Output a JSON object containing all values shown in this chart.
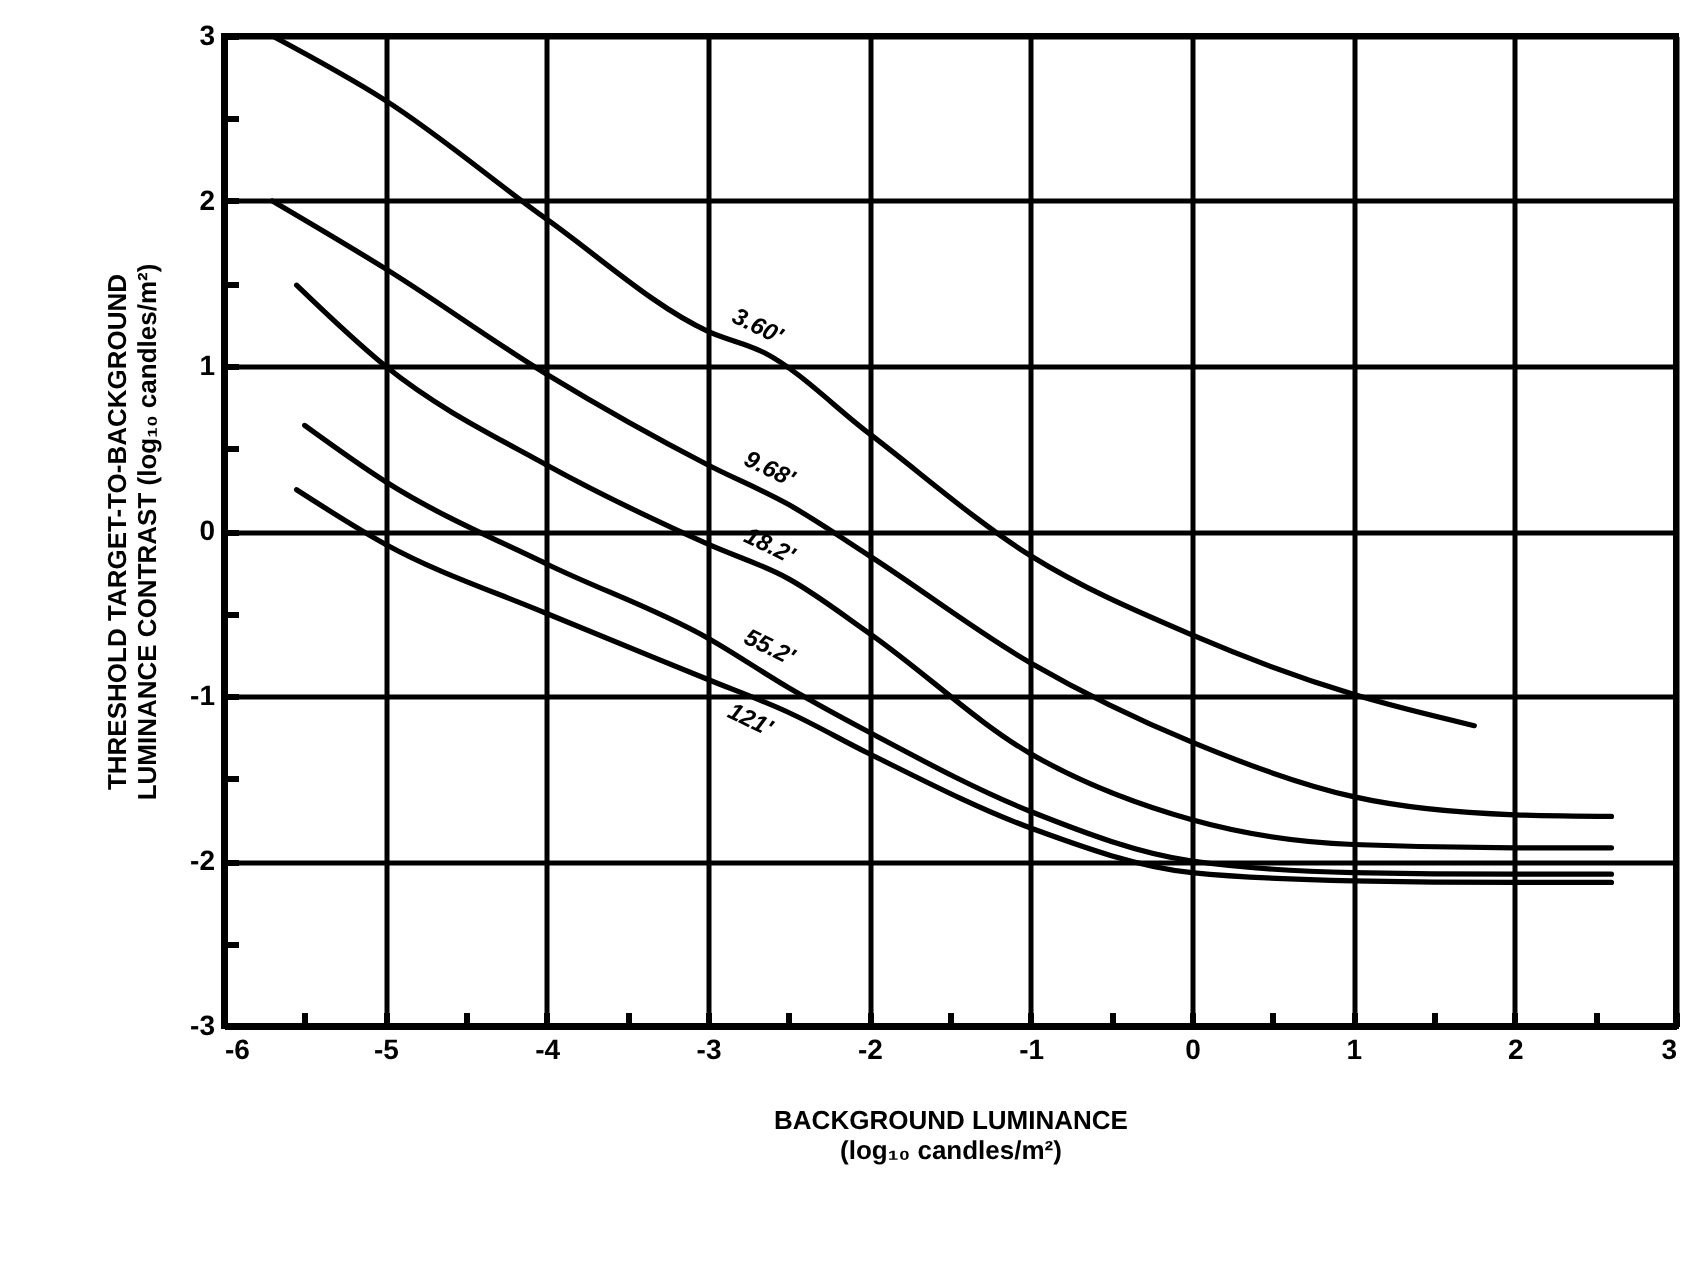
{
  "chart_data": {
    "type": "line",
    "xlabel": "BACKGROUND LUMINANCE\n(log₁₀ candles/m²)",
    "ylabel": "THRESHOLD TARGET-TO-BACKGROUND\nLUMINANCE CONTRAST (log₁₀ candles/m²)",
    "xlim": [
      -6,
      3
    ],
    "ylim": [
      -3,
      3
    ],
    "xticks": [
      -6,
      {
        "value": -5.5,
        "label": null
      },
      -5,
      {
        "value": -4.5,
        "label": null
      },
      -4,
      {
        "value": -3.5,
        "label": null
      },
      -3,
      {
        "value": -2.5,
        "label": null
      },
      -2,
      {
        "value": -1.5,
        "label": null
      },
      -1,
      {
        "value": -0.5,
        "label": null
      },
      0,
      {
        "value": 0.5,
        "label": null
      },
      1,
      {
        "value": 1.5,
        "label": null
      },
      2,
      {
        "value": 2.5,
        "label": null
      },
      3
    ],
    "yticks": [
      -3,
      {
        "value": -2.5,
        "label": null
      },
      -2,
      {
        "value": -1.5,
        "label": null
      },
      -1,
      {
        "value": -0.5,
        "label": null
      },
      0,
      {
        "value": 0.5,
        "label": null
      },
      1,
      {
        "value": 1.5,
        "label": null
      },
      2,
      {
        "value": 2.5,
        "label": null
      },
      3
    ],
    "grid": true,
    "line_style": "solid",
    "series": [
      {
        "name": "3.60'",
        "color": "#000000",
        "x": [
          -5.7,
          -5,
          -4,
          -3,
          -2.65,
          -2,
          -1,
          0,
          1,
          1.75
        ],
        "values": [
          3.0,
          2.61,
          1.89,
          1.21,
          1.08,
          0.59,
          -0.15,
          -0.63,
          -0.99,
          -1.18
        ]
      },
      {
        "name": "9.68'",
        "color": "#000000",
        "x": [
          -5.7,
          -5,
          -4,
          -3,
          -2.5,
          -2,
          -1,
          0,
          1,
          2,
          2.6
        ],
        "values": [
          2.0,
          1.59,
          0.95,
          0.4,
          0.16,
          -0.15,
          -0.8,
          -1.28,
          -1.61,
          -1.72,
          -1.73
        ]
      },
      {
        "name": "18.2'",
        "color": "#000000",
        "x": [
          -5.55,
          -5,
          -4,
          -3,
          -2.5,
          -2,
          -1,
          0,
          1,
          2,
          2.6
        ],
        "values": [
          1.49,
          1.0,
          0.4,
          -0.08,
          -0.29,
          -0.62,
          -1.35,
          -1.75,
          -1.9,
          -1.92,
          -1.92
        ]
      },
      {
        "name": "55.2'",
        "color": "#000000",
        "x": [
          -5.5,
          -5,
          -4,
          -3,
          -2.5,
          -2,
          -1,
          0,
          1,
          2,
          2.6
        ],
        "values": [
          0.64,
          0.3,
          -0.2,
          -0.65,
          -0.95,
          -1.22,
          -1.7,
          -2.0,
          -2.07,
          -2.08,
          -2.08
        ]
      },
      {
        "name": "121'",
        "color": "#000000",
        "x": [
          -5.55,
          -5,
          -4,
          -3,
          -2.5,
          -2,
          -1,
          0,
          1,
          2,
          2.6
        ],
        "values": [
          0.25,
          -0.08,
          -0.5,
          -0.9,
          -1.1,
          -1.35,
          -1.8,
          -2.07,
          -2.12,
          -2.13,
          -2.13
        ]
      }
    ]
  }
}
